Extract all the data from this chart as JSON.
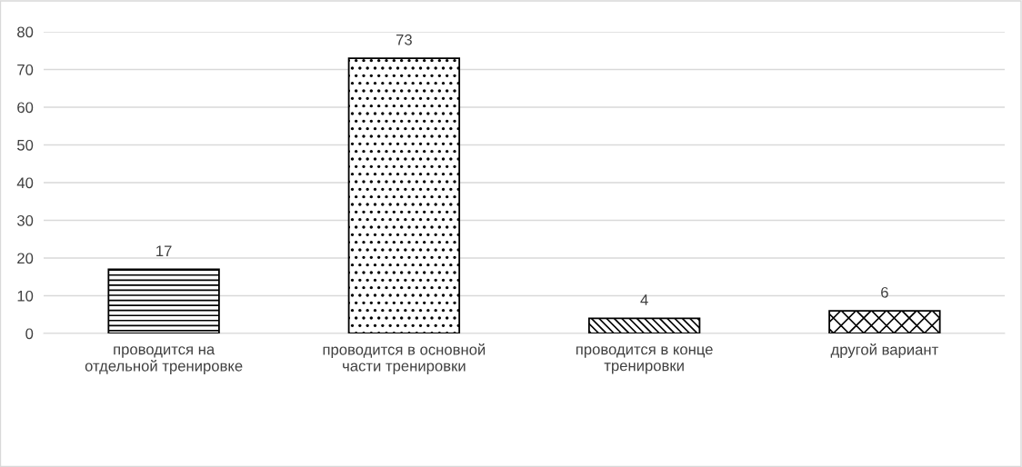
{
  "chart_data": {
    "type": "bar",
    "categories": [
      "проводится на\nотдельной тренировке",
      "проводится в основной\nчасти тренировки",
      "проводится в конце\nтренировки",
      "другой вариант"
    ],
    "values": [
      17,
      73,
      4,
      6
    ],
    "color": "#000000",
    "ylim": [
      0,
      80
    ],
    "yticks": [
      0,
      10,
      20,
      30,
      40,
      50,
      60,
      70,
      80
    ],
    "grid": "y",
    "data_labels": true
  }
}
